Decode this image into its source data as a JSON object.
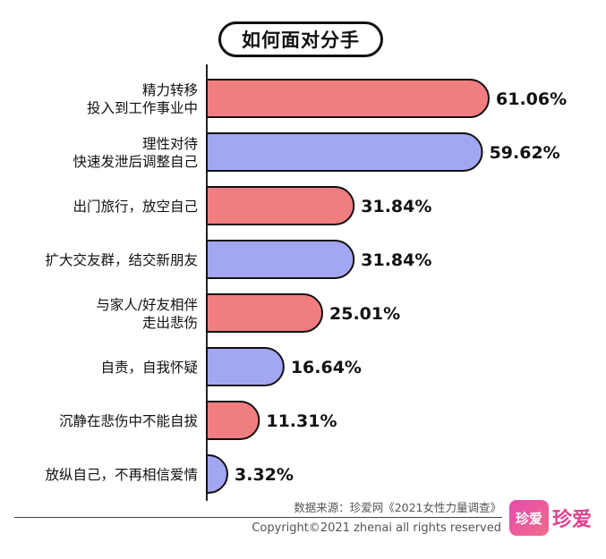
{
  "chart_data": {
    "type": "bar",
    "orientation": "horizontal",
    "title": "如何面对分手",
    "categories": [
      [
        "精力转移",
        "投入到工作事业中"
      ],
      [
        "理性对待",
        "快速发泄后调整自己"
      ],
      [
        "出门旅行，放空自己"
      ],
      [
        "扩大交友群，结交新朋友"
      ],
      [
        "与家人/好友相伴",
        "走出悲伤"
      ],
      [
        "自责，自我怀疑"
      ],
      [
        "沉静在悲伤中不能自拔"
      ],
      [
        "放纵自己，不再相信爱情"
      ]
    ],
    "values": [
      61.06,
      59.62,
      31.84,
      31.84,
      25.01,
      16.64,
      11.31,
      3.32
    ],
    "value_labels": [
      "61.06%",
      "59.62%",
      "31.84%",
      "31.84%",
      "25.01%",
      "16.64%",
      "11.31%",
      "3.32%"
    ],
    "colors": [
      "#f07d80",
      "#a3a6f2",
      "#f07d80",
      "#a3a6f2",
      "#f07d80",
      "#a3a6f2",
      "#f07d80",
      "#a3a6f2"
    ],
    "xlim": [
      0,
      61.06
    ],
    "grid": false,
    "legend": "none"
  },
  "footer": {
    "source": "数据来源：珍爱网《2021女性力量调查》",
    "copyright": "Copyright©2021  zhenai  all rights reserved"
  },
  "logo": {
    "badge_text": "珍爱",
    "brand_text": "珍爱"
  }
}
